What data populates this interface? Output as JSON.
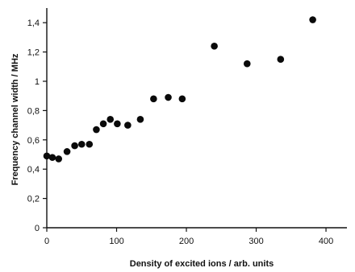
{
  "chart_data": {
    "type": "scatter",
    "title": "",
    "xlabel": "Density of excited ions / arb. units",
    "ylabel": "Frequency channel width / MHz",
    "xlim": [
      0,
      430
    ],
    "ylim": [
      0,
      1.5
    ],
    "x_ticks": [
      0,
      100,
      200,
      300,
      400
    ],
    "x_tick_labels": [
      "0",
      "100",
      "200",
      "300",
      "400"
    ],
    "y_ticks": [
      0,
      0.2,
      0.4,
      0.6,
      0.8,
      1.0,
      1.2,
      1.4
    ],
    "y_tick_labels": [
      "0",
      "0,2",
      "0,4",
      "0,6",
      "0,8",
      "1",
      "1,2",
      "1,4"
    ],
    "grid": false,
    "series": [
      {
        "points": [
          {
            "x": 0,
            "y": 0.49
          },
          {
            "x": 8,
            "y": 0.48
          },
          {
            "x": 17,
            "y": 0.47
          },
          {
            "x": 29,
            "y": 0.52
          },
          {
            "x": 40,
            "y": 0.56
          },
          {
            "x": 50,
            "y": 0.57
          },
          {
            "x": 61,
            "y": 0.57
          },
          {
            "x": 71,
            "y": 0.67
          },
          {
            "x": 81,
            "y": 0.71
          },
          {
            "x": 91,
            "y": 0.74
          },
          {
            "x": 101,
            "y": 0.71
          },
          {
            "x": 116,
            "y": 0.7
          },
          {
            "x": 134,
            "y": 0.74
          },
          {
            "x": 153,
            "y": 0.88
          },
          {
            "x": 174,
            "y": 0.89
          },
          {
            "x": 194,
            "y": 0.88
          },
          {
            "x": 240,
            "y": 1.24
          },
          {
            "x": 287,
            "y": 1.12
          },
          {
            "x": 335,
            "y": 1.15
          },
          {
            "x": 381,
            "y": 1.42
          }
        ]
      }
    ]
  }
}
